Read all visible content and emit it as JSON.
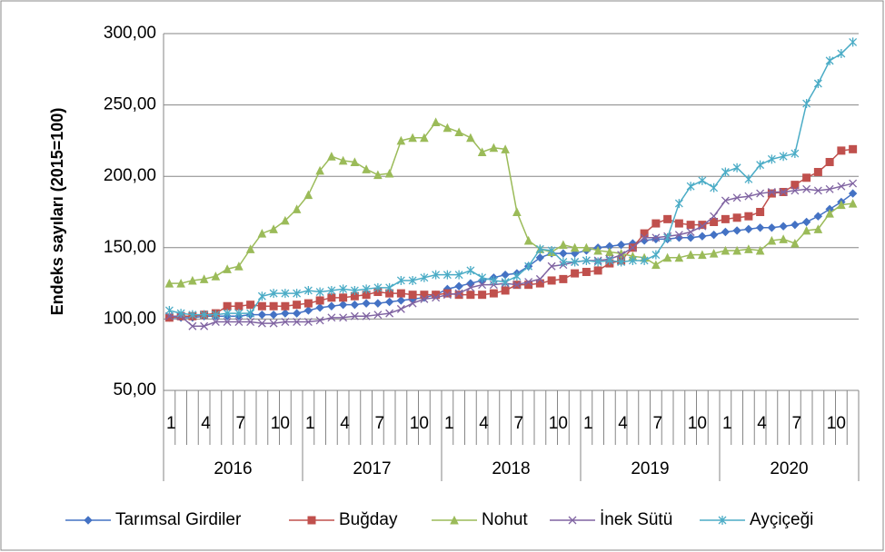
{
  "chart_data": {
    "type": "line",
    "y_axis_label": "Endeks sayıları (2015=100)",
    "categories": [
      "1",
      null,
      null,
      "4",
      null,
      null,
      "7",
      null,
      null,
      "10",
      null,
      null,
      "1",
      null,
      null,
      "4",
      null,
      null,
      "7",
      null,
      null,
      "10",
      null,
      null,
      "1",
      null,
      null,
      "4",
      null,
      null,
      "7",
      null,
      null,
      "10",
      null,
      null,
      "1",
      null,
      null,
      "4",
      null,
      null,
      "7",
      null,
      null,
      "10",
      null,
      null,
      "1",
      null,
      null,
      "4",
      null,
      null,
      "7",
      null,
      null,
      "10",
      null,
      null
    ],
    "years": [
      "2016",
      "2017",
      "2018",
      "2019",
      "2020"
    ],
    "ylim": [
      50,
      300
    ],
    "yticks": [
      {
        "value": 50,
        "label": "50,00"
      },
      {
        "value": 100,
        "label": "100,00"
      },
      {
        "value": 150,
        "label": "150,00"
      },
      {
        "value": 200,
        "label": "200,00"
      },
      {
        "value": 250,
        "label": "250,00"
      },
      {
        "value": 300,
        "label": "300,00"
      }
    ],
    "grid": true,
    "legend": "bottom",
    "series": [
      {
        "name": "Tarımsal Girdiler",
        "color": "#4472c4",
        "marker": "diamond",
        "values": [
          101,
          101,
          101,
          102,
          102,
          102,
          102,
          103,
          103,
          103,
          104,
          104,
          106,
          108,
          109,
          110,
          110,
          111,
          111,
          112,
          113,
          114,
          115,
          117,
          121,
          123,
          125,
          127,
          129,
          131,
          132,
          137,
          143,
          146,
          146,
          146,
          148,
          150,
          151,
          152,
          153,
          155,
          156,
          156,
          157,
          157,
          158,
          159,
          161,
          162,
          163,
          164,
          164,
          165,
          166,
          168,
          172,
          177,
          182,
          188
        ]
      },
      {
        "name": "Buğday",
        "color": "#c0504d",
        "marker": "square",
        "values": [
          101,
          102,
          102,
          103,
          104,
          109,
          109,
          110,
          109,
          109,
          109,
          110,
          111,
          113,
          115,
          115,
          116,
          117,
          119,
          118,
          118,
          117,
          117,
          117,
          118,
          117,
          117,
          117,
          118,
          120,
          124,
          124,
          125,
          127,
          128,
          132,
          133,
          134,
          139,
          141,
          150,
          160,
          167,
          170,
          167,
          166,
          166,
          168,
          170,
          171,
          172,
          175,
          188,
          189,
          194,
          199,
          203,
          210,
          218,
          219
        ]
      },
      {
        "name": "Nohut",
        "color": "#9bbb59",
        "marker": "triangle",
        "values": [
          125,
          125,
          127,
          128,
          130,
          135,
          137,
          149,
          160,
          163,
          169,
          177,
          187,
          204,
          214,
          211,
          210,
          205,
          201,
          202,
          225,
          227,
          227,
          238,
          234,
          231,
          227,
          217,
          220,
          219,
          175,
          155,
          149,
          147,
          152,
          150,
          150,
          148,
          147,
          146,
          144,
          143,
          138,
          143,
          143,
          145,
          145,
          146,
          148,
          148,
          149,
          148,
          155,
          156,
          153,
          162,
          163,
          174,
          180,
          181
        ]
      },
      {
        "name": "İnek Sütü",
        "color": "#8064a2",
        "marker": "x",
        "values": [
          102,
          102,
          95,
          95,
          98,
          98,
          98,
          98,
          97,
          97,
          98,
          98,
          98,
          99,
          101,
          101,
          102,
          102,
          103,
          104,
          107,
          111,
          114,
          115,
          117,
          118,
          122,
          124,
          124,
          125,
          124,
          126,
          128,
          137,
          138,
          140,
          141,
          141,
          142,
          145,
          150,
          157,
          157,
          158,
          159,
          161,
          165,
          172,
          183,
          185,
          186,
          188,
          189,
          189,
          190,
          191,
          190,
          191,
          193,
          195
        ]
      },
      {
        "name": "Ayçiçeği",
        "color": "#4bacc6",
        "marker": "star",
        "values": [
          106,
          104,
          103,
          103,
          103,
          104,
          104,
          104,
          116,
          118,
          118,
          118,
          120,
          119,
          120,
          121,
          120,
          121,
          122,
          122,
          127,
          127,
          129,
          131,
          131,
          131,
          134,
          129,
          127,
          126,
          130,
          137,
          149,
          148,
          140,
          140,
          141,
          140,
          141,
          140,
          141,
          141,
          145,
          157,
          181,
          193,
          197,
          192,
          203,
          206,
          198,
          208,
          212,
          214,
          216,
          251,
          265,
          281,
          286,
          294
        ]
      }
    ]
  }
}
